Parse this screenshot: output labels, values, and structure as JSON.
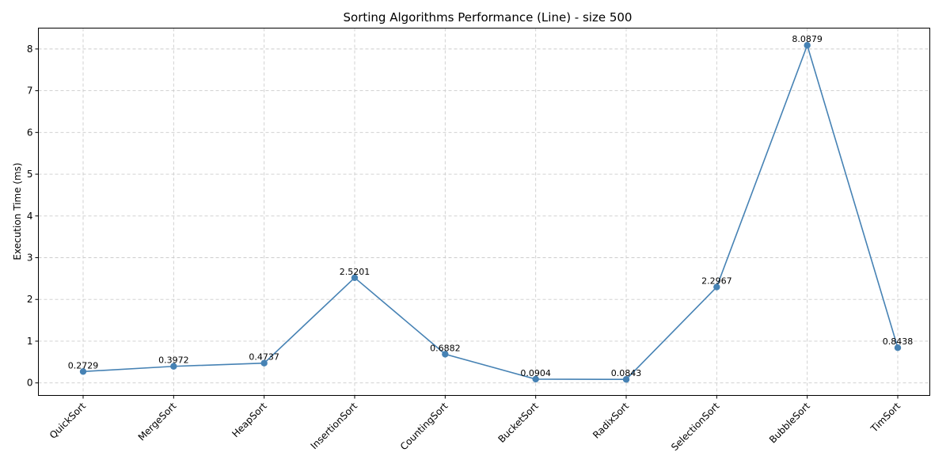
{
  "chart_data": {
    "type": "line",
    "title": "Sorting Algorithms Performance (Line) - size 500",
    "xlabel": "",
    "ylabel": "Execution Time (ms)",
    "categories": [
      "QuickSort",
      "MergeSort",
      "HeapSort",
      "InsertionSort",
      "CountingSort",
      "BucketSort",
      "RadixSort",
      "SelectionSort",
      "BubbleSort",
      "TimSort"
    ],
    "series": [
      {
        "values": [
          0.2729,
          0.3972,
          0.4737,
          2.5201,
          0.6882,
          0.0904,
          0.0843,
          2.2967,
          8.0879,
          0.8438
        ],
        "color": "#4682b4"
      }
    ],
    "data_labels": [
      "0.2729",
      "0.3972",
      "0.4737",
      "2.5201",
      "0.6882",
      "0.0904",
      "0.0843",
      "2.2967",
      "8.0879",
      "0.8438"
    ],
    "yticks": [
      0,
      1,
      2,
      3,
      4,
      5,
      6,
      7,
      8
    ],
    "ylim": [
      -0.3,
      8.5
    ],
    "grid": true,
    "x_tick_rotation_deg": 45
  }
}
